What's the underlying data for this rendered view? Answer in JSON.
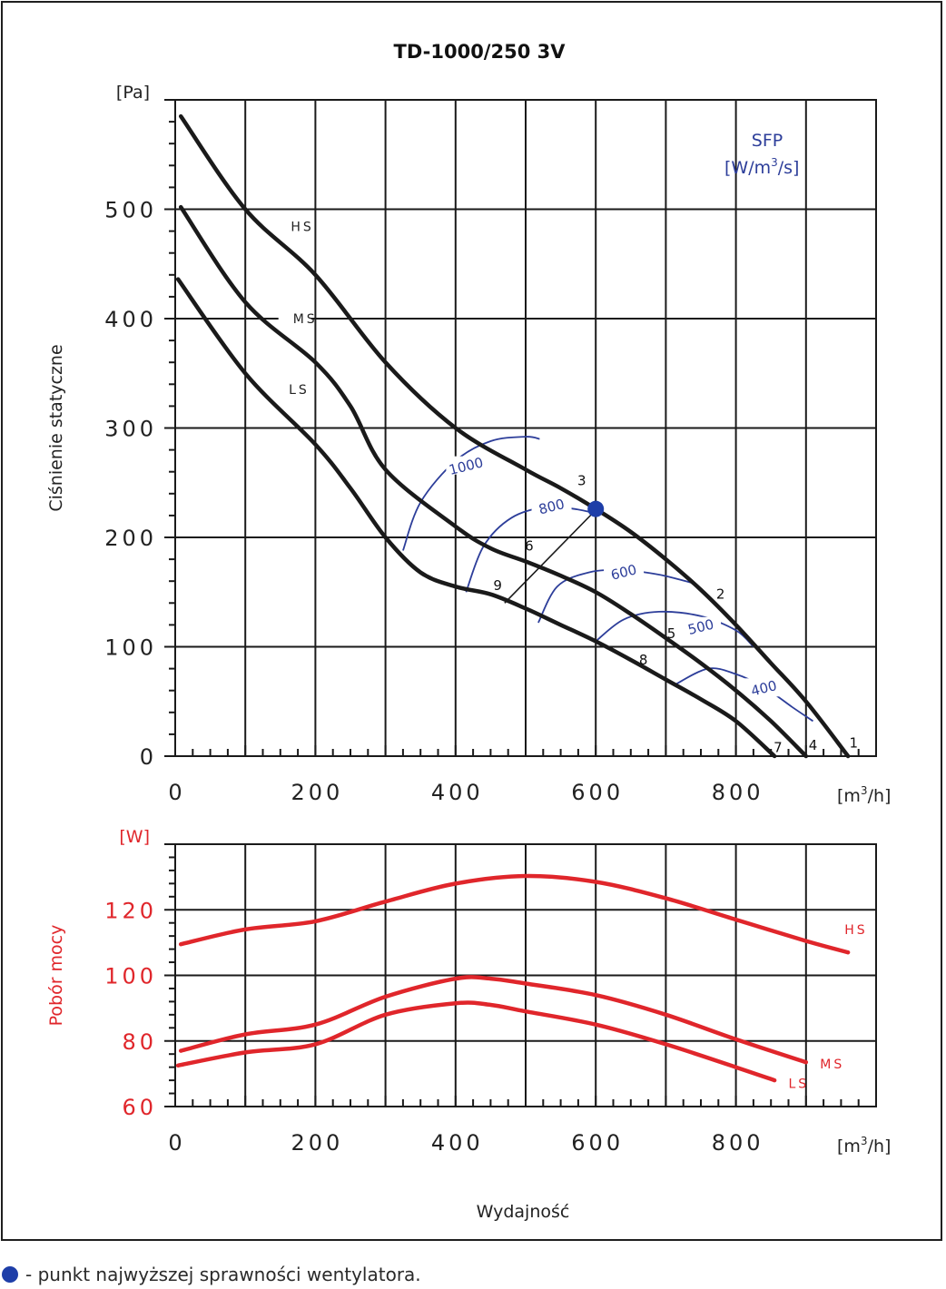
{
  "page": {
    "footnote": "- punkt najwyższej sprawności wentylatora."
  },
  "chart_data": [
    {
      "type": "line",
      "title": "TD-1000/250 3V",
      "xlabel": "",
      "ylabel": "Ciśnienie statyczne",
      "x_unit": "[m³/h]",
      "y_unit": "[Pa]",
      "xlim": [
        0,
        1000
      ],
      "ylim": [
        0,
        600
      ],
      "x_ticks": [
        0,
        200,
        400,
        600,
        800
      ],
      "y_ticks": [
        0,
        100,
        200,
        300,
        400,
        500
      ],
      "grid": true,
      "colors": {
        "curve": "#1a1a1a",
        "sfp": "#2d3e9a",
        "point": "#1e3ea8"
      },
      "series": [
        {
          "name": "HS",
          "x": [
            8,
            100,
            200,
            300,
            400,
            500,
            550,
            600,
            650,
            700,
            750,
            800,
            850,
            900,
            960
          ],
          "y": [
            585,
            500,
            440,
            360,
            300,
            262,
            245,
            226,
            205,
            180,
            152,
            120,
            85,
            50,
            0
          ]
        },
        {
          "name": "MS",
          "x": [
            8,
            100,
            200,
            250,
            300,
            400,
            450,
            500,
            550,
            600,
            650,
            700,
            750,
            800,
            850,
            900
          ],
          "y": [
            502,
            415,
            360,
            320,
            262,
            210,
            190,
            178,
            165,
            150,
            130,
            108,
            85,
            60,
            32,
            0
          ]
        },
        {
          "name": "LS",
          "x": [
            4,
            100,
            200,
            250,
            300,
            350,
            400,
            450,
            500,
            550,
            600,
            650,
            700,
            750,
            800,
            855
          ],
          "y": [
            436,
            350,
            285,
            245,
            200,
            168,
            155,
            148,
            135,
            120,
            105,
            88,
            70,
            52,
            32,
            0
          ]
        }
      ],
      "series_labels": [
        {
          "text": "HS",
          "x": 165,
          "y": 485
        },
        {
          "text": "MS",
          "x": 168,
          "y": 401
        },
        {
          "text": "LS",
          "x": 162,
          "y": 336
        }
      ],
      "sfp_label": [
        "SFP",
        "[W/m³/s]"
      ],
      "sfp_curves": [
        {
          "label": "1000",
          "x": [
            325,
            350,
            400,
            450,
            500,
            520
          ],
          "y": [
            188,
            232,
            270,
            288,
            292,
            290
          ],
          "lx": 415,
          "ly": 265
        },
        {
          "label": "800",
          "x": [
            415,
            440,
            480,
            530,
            570,
            600
          ],
          "y": [
            150,
            192,
            218,
            228,
            226,
            222
          ],
          "lx": 537,
          "ly": 228
        },
        {
          "label": "600",
          "x": [
            518,
            545,
            590,
            640,
            690,
            740
          ],
          "y": [
            122,
            155,
            168,
            170,
            166,
            158
          ],
          "lx": 640,
          "ly": 168
        },
        {
          "label": "500",
          "x": [
            600,
            640,
            690,
            750,
            800,
            825
          ],
          "y": [
            105,
            125,
            132,
            128,
            115,
            100
          ],
          "lx": 750,
          "ly": 118
        },
        {
          "label": "400",
          "x": [
            712,
            760,
            800,
            840,
            880,
            910
          ],
          "y": [
            65,
            80,
            75,
            63,
            45,
            32
          ],
          "lx": 840,
          "ly": 62
        }
      ],
      "op_points": [
        {
          "label": "1",
          "x": 968,
          "y": 12
        },
        {
          "label": "2",
          "x": 778,
          "y": 148
        },
        {
          "label": "3",
          "x": 580,
          "y": 252
        },
        {
          "label": "4",
          "x": 910,
          "y": 10
        },
        {
          "label": "5",
          "x": 708,
          "y": 112
        },
        {
          "label": "6",
          "x": 505,
          "y": 192
        },
        {
          "label": "7",
          "x": 860,
          "y": 8
        },
        {
          "label": "8",
          "x": 668,
          "y": 88
        },
        {
          "label": "9",
          "x": 460,
          "y": 156
        }
      ],
      "efficiency_line": {
        "x": [
          470,
          600
        ],
        "y": [
          140,
          225
        ]
      },
      "best_point": {
        "x": 600,
        "y": 226
      }
    },
    {
      "type": "line",
      "title": "",
      "xlabel": "Wydajność",
      "ylabel": "Pobór mocy",
      "x_unit": "[m³/h]",
      "y_unit": "[W]",
      "xlim": [
        0,
        1000
      ],
      "ylim": [
        60,
        140
      ],
      "x_ticks": [
        0,
        200,
        400,
        600,
        800
      ],
      "y_ticks": [
        60,
        80,
        100,
        120
      ],
      "grid": true,
      "colors": {
        "curve": "#e0262b",
        "axis_text": "#e0262b"
      },
      "series": [
        {
          "name": "HS",
          "x": [
            8,
            100,
            200,
            300,
            400,
            500,
            600,
            700,
            800,
            900,
            960
          ],
          "y": [
            109.5,
            114,
            116.5,
            122.5,
            128,
            130.3,
            128.5,
            123.5,
            117,
            110.5,
            107
          ]
        },
        {
          "name": "MS",
          "x": [
            8,
            100,
            200,
            300,
            400,
            450,
            500,
            600,
            700,
            800,
            900
          ],
          "y": [
            77,
            82,
            85,
            93.5,
            99,
            99,
            97.5,
            94,
            88,
            80.5,
            73.5
          ]
        },
        {
          "name": "LS",
          "x": [
            4,
            100,
            200,
            300,
            400,
            450,
            500,
            600,
            700,
            800,
            855
          ],
          "y": [
            72.5,
            76.5,
            79,
            88,
            91.5,
            91,
            89,
            85,
            79,
            72,
            68
          ]
        }
      ],
      "series_labels": [
        {
          "text": "HS",
          "x": 955,
          "y": 114
        },
        {
          "text": "MS",
          "x": 920,
          "y": 73
        },
        {
          "text": "LS",
          "x": 875,
          "y": 67
        }
      ]
    }
  ]
}
